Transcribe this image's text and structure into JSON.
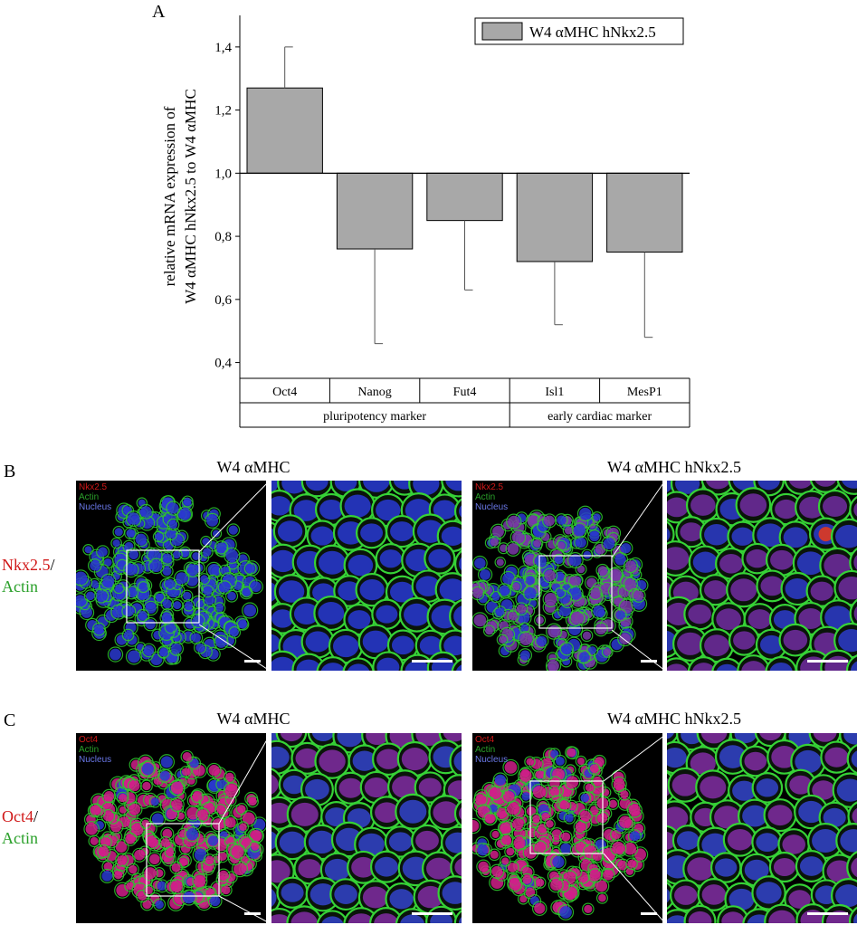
{
  "panel_a": {
    "letter": "A",
    "chart_data": {
      "type": "bar",
      "baseline": 1.0,
      "categories": [
        "Oct4",
        "Nanog",
        "Fut4",
        "Isl1",
        "MesP1"
      ],
      "series": [
        {
          "name": "W4 αMHC hNkx2.5",
          "values": [
            1.27,
            0.76,
            0.85,
            0.72,
            0.75
          ],
          "errors": [
            0.13,
            0.3,
            0.22,
            0.2,
            0.27
          ]
        }
      ],
      "groups": [
        {
          "label": "pluripotency marker",
          "span": 3
        },
        {
          "label": "early cardiac marker",
          "span": 2
        }
      ],
      "ylabel_line1": "relative mRNA expression of",
      "ylabel_line2": "W4 αMHC hNkx2.5 to W4 αMHC",
      "ylim": [
        0.35,
        1.5
      ],
      "yticks": [
        "0,4",
        "0,6",
        "0,8",
        "1,0",
        "1,2",
        "1,4"
      ],
      "legend_placement": "top-right",
      "bar_color": "#a8a8a8"
    }
  },
  "panel_b": {
    "letter": "B",
    "title_left": "W4 αMHC",
    "title_right": "W4 αMHC hNkx2.5",
    "side_label_red": "Nkx2.5",
    "side_label_slash": "/",
    "side_label_green": "Actin",
    "overlay": [
      "Nkx2.5",
      "Actin",
      "Nucleus"
    ]
  },
  "panel_c": {
    "letter": "C",
    "title_left": "W4 αMHC",
    "title_right": "W4 αMHC hNkx2.5",
    "side_label_red": "Oct4",
    "side_label_slash": "/",
    "side_label_green": "Actin",
    "overlay": [
      "Oct4",
      "Actin",
      "Nucleus"
    ]
  },
  "colors": {
    "red": "#d01818",
    "green": "#2aa02a",
    "blue": "#3a50d8"
  }
}
